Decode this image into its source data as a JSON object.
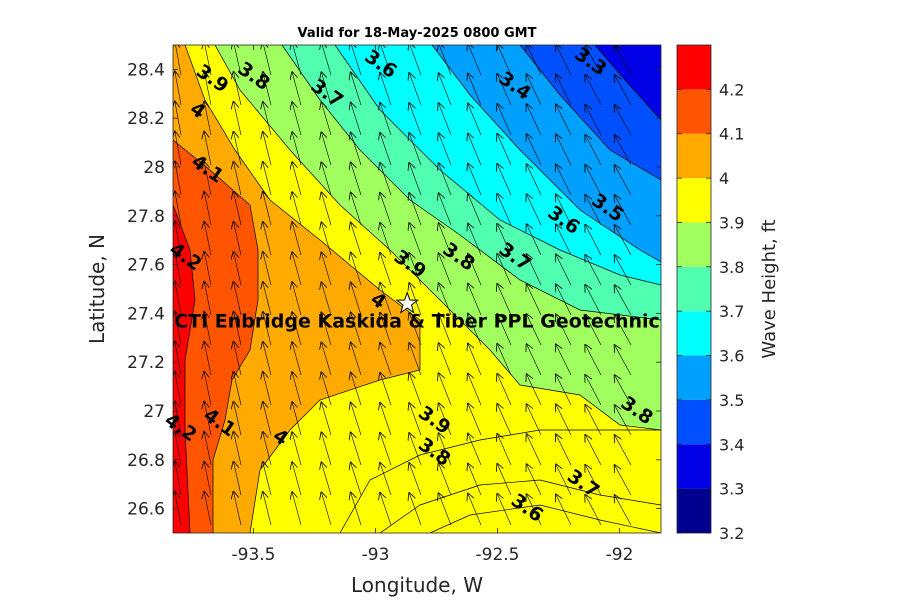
{
  "chart_data": {
    "type": "heatmap",
    "title": "Valid for 18-May-2025 0800 GMT",
    "xlabel": "Longitude, W",
    "ylabel": "Latitude, N",
    "xlim": [
      -93.83,
      -91.83
    ],
    "ylim": [
      26.5,
      28.5
    ],
    "x_ticks": [
      -93.5,
      -93,
      -92.5,
      -92
    ],
    "x_tick_labels": [
      "-93.5",
      "-93",
      "-92.5",
      "-92"
    ],
    "y_ticks": [
      26.6,
      26.8,
      27,
      27.2,
      27.4,
      27.6,
      27.8,
      28,
      28.2,
      28.4
    ],
    "y_tick_labels": [
      "26.6",
      "26.8",
      "27",
      "27.2",
      "27.4",
      "27.6",
      "27.8",
      "28",
      "28.2",
      "28.4"
    ],
    "colorbar": {
      "label": "Wave Height, ft",
      "range": [
        3.2,
        4.3
      ],
      "ticks": [
        "3.2",
        "3.3",
        "3.4",
        "3.5",
        "3.6",
        "3.7",
        "3.8",
        "3.9",
        "4",
        "4.1",
        "4.2"
      ],
      "bands": [
        "#00008f",
        "#0000e6",
        "#0050ff",
        "#00a0ff",
        "#00ffff",
        "#50ffb0",
        "#a0ff5f",
        "#ffff00",
        "#ffaa00",
        "#ff5500",
        "#ff0000"
      ]
    },
    "contour_labels": [
      {
        "text": "3.9",
        "lon": -93.67,
        "lat": 28.36
      },
      {
        "text": "3.8",
        "lon": -93.5,
        "lat": 28.37
      },
      {
        "text": "3.7",
        "lon": -93.2,
        "lat": 28.3
      },
      {
        "text": "3.6",
        "lon": -92.98,
        "lat": 28.42
      },
      {
        "text": "3.4",
        "lon": -92.43,
        "lat": 28.33
      },
      {
        "text": "3.3",
        "lon": -92.12,
        "lat": 28.43
      },
      {
        "text": "4",
        "lon": -93.73,
        "lat": 28.23
      },
      {
        "text": "4.1",
        "lon": -93.69,
        "lat": 27.99
      },
      {
        "text": "3.5",
        "lon": -92.05,
        "lat": 27.83
      },
      {
        "text": "3.6",
        "lon": -92.23,
        "lat": 27.78
      },
      {
        "text": "4.2",
        "lon": -93.78,
        "lat": 27.63
      },
      {
        "text": "3.9",
        "lon": -92.86,
        "lat": 27.6
      },
      {
        "text": "3.8",
        "lon": -92.66,
        "lat": 27.63
      },
      {
        "text": "3.7",
        "lon": -92.43,
        "lat": 27.63
      },
      {
        "text": "4",
        "lon": -92.99,
        "lat": 27.45
      },
      {
        "text": "4.1",
        "lon": -93.64,
        "lat": 26.95
      },
      {
        "text": "4.2",
        "lon": -93.8,
        "lat": 26.93
      },
      {
        "text": "4",
        "lon": -93.39,
        "lat": 26.89
      },
      {
        "text": "3.9",
        "lon": -92.76,
        "lat": 26.96
      },
      {
        "text": "3.8",
        "lon": -92.76,
        "lat": 26.83
      },
      {
        "text": "3.8",
        "lon": -91.93,
        "lat": 27
      },
      {
        "text": "3.7",
        "lon": -92.15,
        "lat": 26.7
      },
      {
        "text": "3.6",
        "lon": -92.38,
        "lat": 26.6
      }
    ],
    "site": {
      "label": "CTI Enbridge  Kaskida & Tiber PPL Geotechnic",
      "lon": -92.87,
      "lat": 27.44
    },
    "wind_vectors": "direction toward roughly north-northwest across grid"
  }
}
